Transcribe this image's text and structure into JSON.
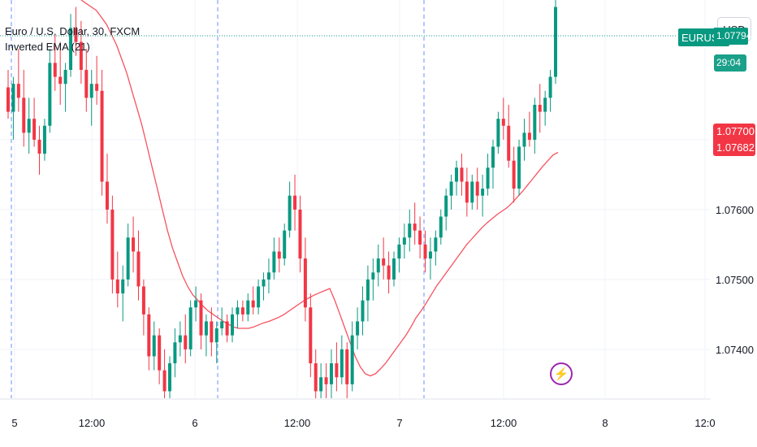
{
  "legend": {
    "title": "Euro / U.S. Dollar, 30, FXCM",
    "indicator": "Inverted EMA (21)"
  },
  "currency_button": "USD",
  "tags": {
    "symbol": "EURUSD",
    "top_price": "1.07794",
    "timer": "29:04",
    "ema_value_a": "1.07700",
    "ema_value_b": "1.07682"
  },
  "colors": {
    "up": "#089981",
    "down": "#f23645",
    "ema": "#f7525f",
    "grid": "#f0f3fa",
    "session": "#2962ff"
  },
  "icons": {
    "alert": "lightning-icon"
  },
  "chart_data": {
    "type": "candlestick",
    "symbol": "EURUSD",
    "interval": "30",
    "y_ticks": [
      "1.07400",
      "1.07500",
      "1.07600",
      "1.07700"
    ],
    "x_ticks": [
      "5",
      "12:00",
      "6",
      "12:00",
      "7",
      "12:00",
      "8",
      "12:0"
    ],
    "ylim": [
      1.0733,
      1.079
    ],
    "series": [
      {
        "name": "EURUSD",
        "type": "candlestick",
        "ohlc": [
          [
            1.07775,
            1.078,
            1.0773,
            1.0774
          ],
          [
            1.0774,
            1.0779,
            1.077,
            1.0778
          ],
          [
            1.0778,
            1.0783,
            1.0774,
            1.0776
          ],
          [
            1.0776,
            1.078,
            1.0769,
            1.0771
          ],
          [
            1.0771,
            1.0776,
            1.0768,
            1.0773
          ],
          [
            1.0773,
            1.0776,
            1.0769,
            1.077
          ],
          [
            1.077,
            1.0772,
            1.0765,
            1.0768
          ],
          [
            1.0768,
            1.0773,
            1.0767,
            1.0772
          ],
          [
            1.0772,
            1.0783,
            1.0771,
            1.0781
          ],
          [
            1.0781,
            1.0785,
            1.0777,
            1.0779
          ],
          [
            1.0779,
            1.0784,
            1.0775,
            1.0778
          ],
          [
            1.0778,
            1.0781,
            1.0774,
            1.078
          ],
          [
            1.078,
            1.0788,
            1.0779,
            1.0786
          ],
          [
            1.0786,
            1.0789,
            1.0782,
            1.0784
          ],
          [
            1.0784,
            1.0787,
            1.0778,
            1.078
          ],
          [
            1.078,
            1.0783,
            1.0774,
            1.0776
          ],
          [
            1.0776,
            1.078,
            1.0772,
            1.0778
          ],
          [
            1.0778,
            1.0782,
            1.0775,
            1.0777
          ],
          [
            1.0777,
            1.078,
            1.0762,
            1.0764
          ],
          [
            1.0764,
            1.0768,
            1.0758,
            1.076
          ],
          [
            1.076,
            1.0762,
            1.0748,
            1.075
          ],
          [
            1.075,
            1.0754,
            1.0746,
            1.0748
          ],
          [
            1.0748,
            1.0752,
            1.0744,
            1.075
          ],
          [
            1.075,
            1.0758,
            1.0749,
            1.0756
          ],
          [
            1.0756,
            1.0759,
            1.0751,
            1.0754
          ],
          [
            1.0754,
            1.0757,
            1.0747,
            1.0749
          ],
          [
            1.0749,
            1.075,
            1.0742,
            1.0745
          ],
          [
            1.0745,
            1.0746,
            1.0737,
            1.0739
          ],
          [
            1.0739,
            1.0744,
            1.0737,
            1.0742
          ],
          [
            1.0742,
            1.0743,
            1.0735,
            1.0737
          ],
          [
            1.0737,
            1.074,
            1.0733,
            1.0734
          ],
          [
            1.0734,
            1.0739,
            1.0733,
            1.0738
          ],
          [
            1.0738,
            1.0743,
            1.0736,
            1.0741
          ],
          [
            1.0741,
            1.0744,
            1.0739,
            1.0742
          ],
          [
            1.0742,
            1.0745,
            1.0738,
            1.074
          ],
          [
            1.074,
            1.0747,
            1.0739,
            1.0746
          ],
          [
            1.0746,
            1.0749,
            1.0744,
            1.0747
          ],
          [
            1.0747,
            1.0748,
            1.074,
            1.0742
          ],
          [
            1.0742,
            1.0745,
            1.0739,
            1.0744
          ],
          [
            1.0744,
            1.0746,
            1.0739,
            1.0741
          ],
          [
            1.0741,
            1.0744,
            1.0738,
            1.0743
          ],
          [
            1.0743,
            1.0746,
            1.0742,
            1.0744
          ],
          [
            1.0744,
            1.0745,
            1.0741,
            1.0742
          ],
          [
            1.0742,
            1.0746,
            1.0741,
            1.0745
          ],
          [
            1.0745,
            1.0747,
            1.0743,
            1.0746
          ],
          [
            1.0746,
            1.0747,
            1.0744,
            1.0745
          ],
          [
            1.0745,
            1.0748,
            1.0744,
            1.0747
          ],
          [
            1.0747,
            1.0749,
            1.0745,
            1.0746
          ],
          [
            1.0746,
            1.075,
            1.0745,
            1.0749
          ],
          [
            1.0749,
            1.0751,
            1.0747,
            1.075
          ],
          [
            1.075,
            1.0753,
            1.0748,
            1.0751
          ],
          [
            1.0751,
            1.0756,
            1.075,
            1.0754
          ],
          [
            1.0754,
            1.0756,
            1.0751,
            1.0753
          ],
          [
            1.0753,
            1.0758,
            1.0752,
            1.0757
          ],
          [
            1.0757,
            1.0764,
            1.0756,
            1.0762
          ],
          [
            1.0762,
            1.0765,
            1.0757,
            1.076
          ],
          [
            1.076,
            1.0762,
            1.0751,
            1.0753
          ],
          [
            1.0753,
            1.0756,
            1.0744,
            1.0746
          ],
          [
            1.0746,
            1.0748,
            1.0736,
            1.0738
          ],
          [
            1.0738,
            1.074,
            1.0733,
            1.0734
          ],
          [
            1.0734,
            1.0738,
            1.0733,
            1.0736
          ],
          [
            1.0736,
            1.0738,
            1.0733,
            1.0735
          ],
          [
            1.0735,
            1.074,
            1.0733,
            1.0738
          ],
          [
            1.0738,
            1.0741,
            1.0734,
            1.0736
          ],
          [
            1.0736,
            1.0742,
            1.0735,
            1.074
          ],
          [
            1.074,
            1.0741,
            1.0733,
            1.0735
          ],
          [
            1.0735,
            1.0744,
            1.0734,
            1.0742
          ],
          [
            1.0742,
            1.0746,
            1.074,
            1.0744
          ],
          [
            1.0744,
            1.0749,
            1.0742,
            1.0747
          ],
          [
            1.0747,
            1.0752,
            1.0744,
            1.075
          ],
          [
            1.075,
            1.0753,
            1.0747,
            1.0751
          ],
          [
            1.0751,
            1.0755,
            1.0749,
            1.0753
          ],
          [
            1.0753,
            1.0756,
            1.075,
            1.0752
          ],
          [
            1.0752,
            1.0754,
            1.0748,
            1.075
          ],
          [
            1.075,
            1.0754,
            1.0749,
            1.0753
          ],
          [
            1.0753,
            1.0756,
            1.0751,
            1.0755
          ],
          [
            1.0755,
            1.0758,
            1.0753,
            1.0756
          ],
          [
            1.0756,
            1.076,
            1.0754,
            1.0758
          ],
          [
            1.0758,
            1.0761,
            1.0755,
            1.0757
          ],
          [
            1.0757,
            1.0759,
            1.0753,
            1.0755
          ],
          [
            1.0755,
            1.0757,
            1.0751,
            1.0753
          ],
          [
            1.0753,
            1.0756,
            1.075,
            1.0754
          ],
          [
            1.0754,
            1.0757,
            1.0752,
            1.0756
          ],
          [
            1.0756,
            1.076,
            1.0755,
            1.0759
          ],
          [
            1.0759,
            1.0763,
            1.0757,
            1.0762
          ],
          [
            1.0762,
            1.0765,
            1.076,
            1.0764
          ],
          [
            1.0764,
            1.0767,
            1.0762,
            1.0766
          ],
          [
            1.0766,
            1.0768,
            1.0762,
            1.0764
          ],
          [
            1.0764,
            1.0766,
            1.0759,
            1.0761
          ],
          [
            1.0761,
            1.0765,
            1.076,
            1.0764
          ],
          [
            1.0764,
            1.0766,
            1.076,
            1.0762
          ],
          [
            1.0762,
            1.0765,
            1.0759,
            1.0763
          ],
          [
            1.0763,
            1.0768,
            1.0762,
            1.0766
          ],
          [
            1.0766,
            1.077,
            1.0763,
            1.0769
          ],
          [
            1.0769,
            1.0774,
            1.0768,
            1.0773
          ],
          [
            1.0773,
            1.0776,
            1.077,
            1.0772
          ],
          [
            1.0772,
            1.0775,
            1.0766,
            1.0767
          ],
          [
            1.0767,
            1.0769,
            1.0761,
            1.0763
          ],
          [
            1.0763,
            1.077,
            1.0762,
            1.0769
          ],
          [
            1.0769,
            1.0773,
            1.0767,
            1.0771
          ],
          [
            1.0771,
            1.0774,
            1.0769,
            1.077
          ],
          [
            1.077,
            1.0776,
            1.0768,
            1.0775
          ],
          [
            1.0775,
            1.0778,
            1.0771,
            1.0774
          ],
          [
            1.0774,
            1.0777,
            1.0772,
            1.0776
          ],
          [
            1.0776,
            1.078,
            1.0774,
            1.0779
          ],
          [
            1.0779,
            1.079,
            1.0778,
            1.0789
          ]
        ]
      },
      {
        "name": "Inverted EMA (21)",
        "type": "line",
        "values": [
          1.079,
          1.07895,
          1.0789,
          1.07885,
          1.07875,
          1.07865,
          1.0785,
          1.07835,
          1.07815,
          1.07795,
          1.0777,
          1.07745,
          1.0772,
          1.0769,
          1.0766,
          1.0763,
          1.076,
          1.0757,
          1.07545,
          1.07525,
          1.07505,
          1.0749,
          1.07478,
          1.0747,
          1.07462,
          1.07455,
          1.0745,
          1.07445,
          1.0744,
          1.07436,
          1.07432,
          1.0743,
          1.0743,
          1.0743,
          1.07432,
          1.07435,
          1.07438,
          1.0744,
          1.07443,
          1.07446,
          1.0745,
          1.07455,
          1.0746,
          1.07465,
          1.0747,
          1.07474,
          1.07478,
          1.07481,
          1.07484,
          1.07487,
          1.0747,
          1.0745,
          1.0743,
          1.0741,
          1.0739,
          1.07375,
          1.07365,
          1.07362,
          1.07365,
          1.07372,
          1.0738,
          1.0739,
          1.074,
          1.0741,
          1.0742,
          1.07432,
          1.07445,
          1.07455,
          1.07466,
          1.07478,
          1.0749,
          1.075,
          1.0751,
          1.0752,
          1.0753,
          1.0754,
          1.0755,
          1.07558,
          1.07566,
          1.07574,
          1.07581,
          1.07587,
          1.07593,
          1.07598,
          1.07603,
          1.0761,
          1.07618,
          1.07626,
          1.07635,
          1.07644,
          1.07653,
          1.07662,
          1.0767,
          1.07678,
          1.07682
        ]
      }
    ]
  }
}
